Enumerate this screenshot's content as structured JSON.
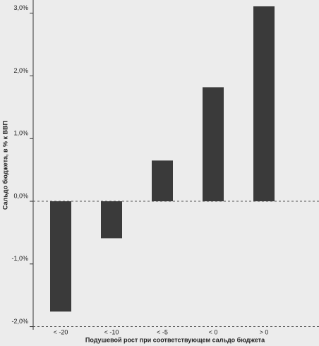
{
  "chart_data": {
    "type": "bar",
    "categories": [
      "< -20",
      "< -10",
      "< -5",
      "< 0",
      "> 0"
    ],
    "values": [
      -1.76,
      -0.59,
      0.65,
      1.82,
      3.11
    ],
    "color": "#3a3a3a",
    "ylim": [
      -2.05,
      3.2
    ],
    "yticks": [
      {
        "value": -2,
        "label": "-2,0%"
      },
      {
        "value": -1,
        "label": "-1,0%"
      },
      {
        "value": 0,
        "label": "0,0%"
      },
      {
        "value": 1,
        "label": "1,0%"
      },
      {
        "value": 2,
        "label": "2,0%"
      },
      {
        "value": 3,
        "label": "3,0%"
      }
    ],
    "x_label": "Подушевой рост при соответствующем сальдо бюджета",
    "y_label": "Сальдо бюджета, в % к ВВП"
  }
}
